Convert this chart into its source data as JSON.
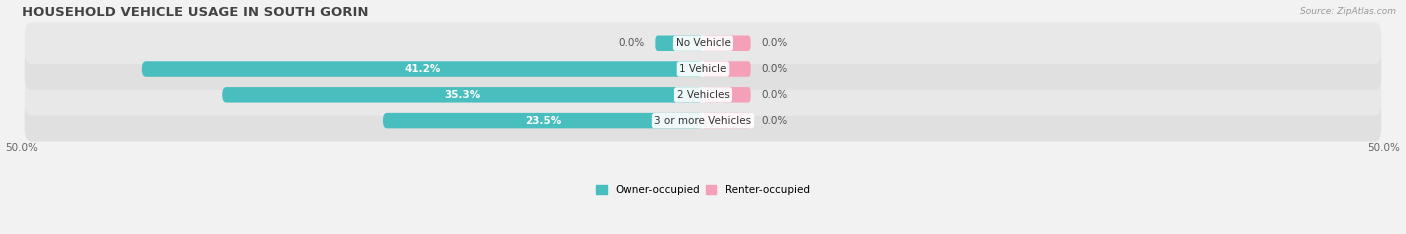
{
  "title": "HOUSEHOLD VEHICLE USAGE IN SOUTH GORIN",
  "source": "Source: ZipAtlas.com",
  "categories": [
    "3 or more Vehicles",
    "2 Vehicles",
    "1 Vehicle",
    "No Vehicle"
  ],
  "owner_values": [
    23.5,
    35.3,
    41.2,
    0.0
  ],
  "renter_values": [
    0.0,
    0.0,
    0.0,
    0.0
  ],
  "owner_color": "#49BEBE",
  "renter_color": "#F4A0B8",
  "bg_color": "#f2f2f2",
  "row_colors": [
    "#e0e0e0",
    "#e8e8e8",
    "#e0e0e0",
    "#e8e8e8"
  ],
  "xlim": 50.0,
  "legend_owner": "Owner-occupied",
  "legend_renter": "Renter-occupied",
  "title_fontsize": 9.5,
  "label_fontsize": 7.5,
  "cat_fontsize": 7.5,
  "source_fontsize": 6.5,
  "bar_height": 0.6,
  "small_bar": 3.5,
  "figsize": [
    14.06,
    2.34
  ],
  "dpi": 100
}
